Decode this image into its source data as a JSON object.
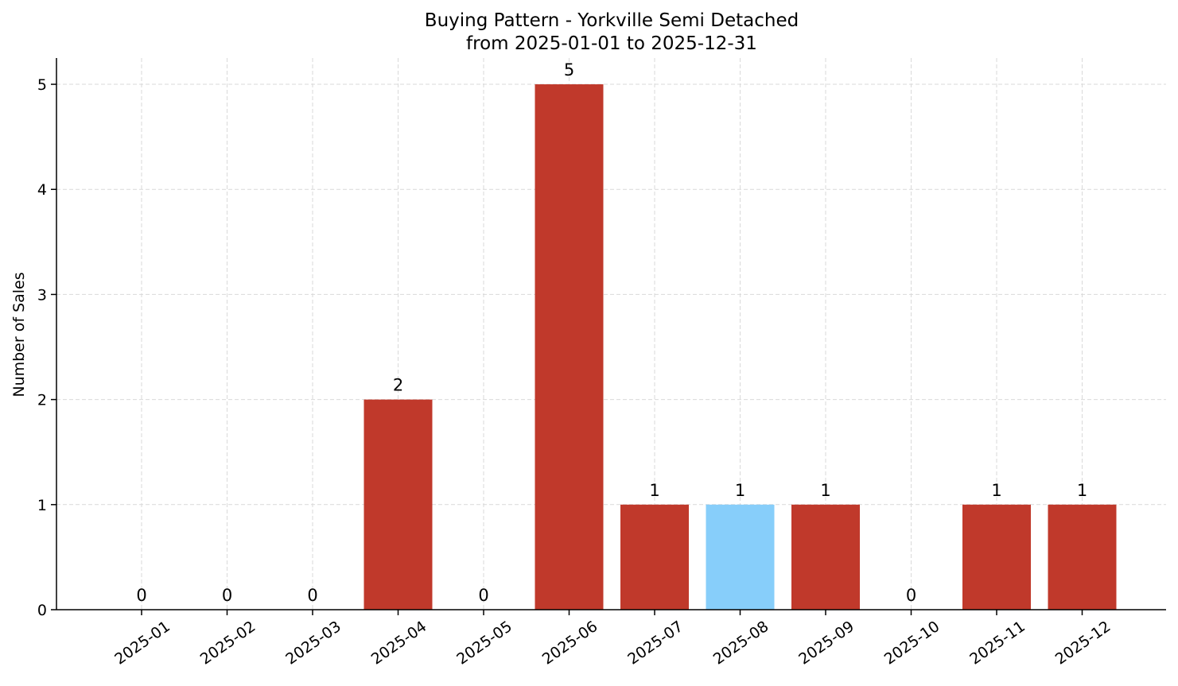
{
  "chart_data": {
    "type": "bar",
    "title": "Buying Pattern - Yorkville Semi Detached",
    "subtitle": "from 2025-01-01 to 2025-12-31",
    "xlabel": "",
    "ylabel": "Number of Sales",
    "categories": [
      "2025-01",
      "2025-02",
      "2025-03",
      "2025-04",
      "2025-05",
      "2025-06",
      "2025-07",
      "2025-08",
      "2025-09",
      "2025-10",
      "2025-11",
      "2025-12"
    ],
    "values": [
      0,
      0,
      0,
      2,
      0,
      5,
      1,
      1,
      1,
      0,
      1,
      1
    ],
    "bar_colors": [
      "#c0392b",
      "#c0392b",
      "#c0392b",
      "#c0392b",
      "#c0392b",
      "#c0392b",
      "#c0392b",
      "#87cefa",
      "#c0392b",
      "#c0392b",
      "#c0392b",
      "#c0392b"
    ],
    "highlight_category": "2025-08",
    "ylim": [
      0,
      5.25
    ],
    "yticks": [
      0,
      1,
      2,
      3,
      4,
      5
    ],
    "grid": true,
    "data_labels": true
  }
}
